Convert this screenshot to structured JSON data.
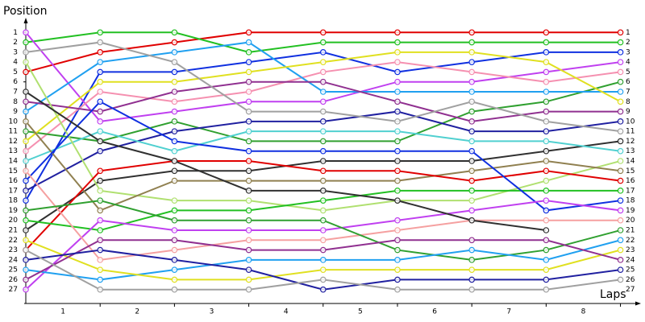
{
  "chart_data": {
    "type": "line",
    "y_label": "Position",
    "x_label": "Laps",
    "x": [
      0,
      1,
      2,
      3,
      4,
      5,
      6,
      7,
      8
    ],
    "xlim": [
      0,
      8.2
    ],
    "xticks": [
      1,
      2,
      3,
      4,
      5,
      6,
      7,
      8
    ],
    "ylim": [
      0,
      28
    ],
    "y_inverted": true,
    "yticks": [
      1,
      2,
      3,
      4,
      5,
      6,
      7,
      8,
      9,
      10,
      11,
      12,
      13,
      14,
      15,
      16,
      17,
      18,
      19,
      20,
      21,
      22,
      23,
      24,
      25,
      26,
      27
    ],
    "grid": false,
    "series": [
      {
        "color": "#e00000",
        "values": [
          5,
          3,
          2,
          1,
          1,
          1,
          1,
          1,
          1
        ]
      },
      {
        "color": "#22c022",
        "values": [
          2,
          1,
          1,
          3,
          2,
          2,
          2,
          2,
          2
        ]
      },
      {
        "color": "#1030e0",
        "values": [
          18,
          5,
          5,
          4,
          3,
          5,
          4,
          3,
          3
        ]
      },
      {
        "color": "#c040f0",
        "values": [
          1,
          10,
          9,
          8,
          8,
          6,
          6,
          5,
          4
        ]
      },
      {
        "color": "#f590b0",
        "values": [
          13,
          7,
          8,
          7,
          5,
          4,
          5,
          6,
          5
        ]
      },
      {
        "color": "#30a030",
        "values": [
          11,
          12,
          10,
          12,
          12,
          12,
          9,
          8,
          6
        ]
      },
      {
        "color": "#20a0f0",
        "values": [
          9,
          4,
          3,
          2,
          7,
          7,
          7,
          7,
          7
        ]
      },
      {
        "color": "#e0e020",
        "values": [
          12,
          6,
          6,
          5,
          4,
          3,
          3,
          4,
          8
        ]
      },
      {
        "color": "#903090",
        "values": [
          8,
          9,
          7,
          6,
          6,
          8,
          10,
          9,
          9
        ]
      },
      {
        "color": "#2020a0",
        "values": [
          17,
          13,
          11,
          10,
          10,
          9,
          11,
          11,
          10
        ]
      },
      {
        "color": "#a0a0a0",
        "values": [
          3,
          2,
          4,
          9,
          9,
          10,
          8,
          10,
          11
        ]
      },
      {
        "color": "#303030",
        "values": [
          21,
          16,
          15,
          15,
          14,
          14,
          14,
          13,
          12
        ]
      },
      {
        "color": "#50d0d0",
        "values": [
          14,
          11,
          13,
          11,
          11,
          11,
          12,
          12,
          13
        ]
      },
      {
        "color": "#b0e070",
        "values": [
          4,
          17,
          18,
          18,
          19,
          18,
          18,
          16,
          14
        ]
      },
      {
        "color": "#908050",
        "values": [
          10,
          19,
          16,
          16,
          16,
          16,
          15,
          14,
          15
        ]
      },
      {
        "color": "#e00000",
        "values": [
          23,
          15,
          14,
          14,
          15,
          15,
          16,
          15,
          16
        ]
      },
      {
        "color": "#22c022",
        "values": [
          20,
          21,
          19,
          19,
          18,
          17,
          17,
          17,
          17
        ]
      },
      {
        "color": "#1030e0",
        "values": [
          16,
          8,
          12,
          13,
          13,
          13,
          13,
          19,
          18
        ]
      },
      {
        "color": "#c040f0",
        "values": [
          27,
          20,
          21,
          21,
          21,
          20,
          19,
          18,
          19
        ]
      },
      {
        "color": "#f5a0a0",
        "values": [
          15,
          24,
          23,
          22,
          22,
          21,
          20,
          20,
          20
        ]
      },
      {
        "color": "#30a030",
        "values": [
          19,
          18,
          20,
          20,
          20,
          23,
          24,
          23,
          21
        ]
      },
      {
        "color": "#20a0f0",
        "values": [
          25,
          26,
          25,
          24,
          24,
          24,
          23,
          24,
          22
        ]
      },
      {
        "color": "#e0e020",
        "values": [
          22,
          25,
          26,
          26,
          25,
          25,
          25,
          25,
          23
        ]
      },
      {
        "color": "#903090",
        "values": [
          26,
          22,
          22,
          23,
          23,
          22,
          22,
          22,
          24
        ]
      },
      {
        "color": "#2020a0",
        "values": [
          24,
          23,
          24,
          25,
          27,
          26,
          26,
          26,
          25
        ]
      },
      {
        "color": "#a0a0a0",
        "values": [
          23,
          27,
          27,
          27,
          26,
          27,
          27,
          27,
          26
        ]
      },
      {
        "color": "#303030",
        "values": [
          7,
          12,
          14,
          17,
          17,
          18,
          20,
          21,
          null
        ]
      }
    ]
  }
}
